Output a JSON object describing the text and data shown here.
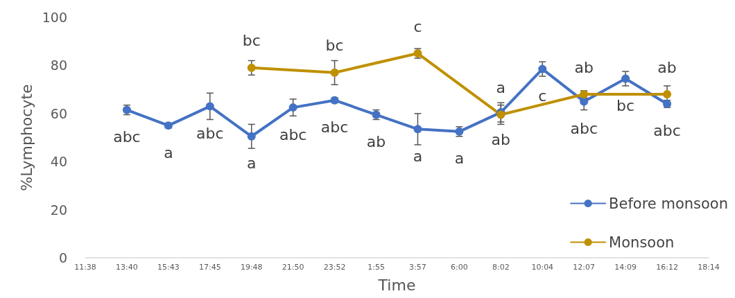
{
  "chart_data": {
    "type": "line",
    "xlabel": "Time",
    "ylabel": "%Lymphocyte",
    "categories": [
      "11:38",
      "13:40",
      "15:43",
      "17:45",
      "19:48",
      "21:50",
      "23:52",
      "1:55",
      "3:57",
      "6:00",
      "8:02",
      "10:04",
      "12:07",
      "14:09",
      "16:12",
      "18:14"
    ],
    "series": [
      {
        "name": "Before monsoon",
        "color": "#4472c4",
        "values": [
          null,
          61.5,
          55,
          63,
          50.5,
          62.5,
          65.5,
          59.5,
          53.5,
          52.5,
          60.5,
          78.5,
          65,
          74.5,
          64,
          null
        ],
        "errors": [
          null,
          2,
          1,
          5.5,
          5,
          3.5,
          1,
          2,
          6.5,
          2,
          4,
          3,
          3.5,
          3,
          1.5,
          null
        ],
        "value_labels": [
          null,
          "abc",
          "a",
          "abc",
          "a",
          "abc",
          "abc",
          "ab",
          "a",
          "a",
          "ab",
          "c",
          "abc",
          "bc",
          "abc",
          null
        ]
      },
      {
        "name": "Monsoon",
        "color": "#bf9000",
        "values": [
          null,
          null,
          null,
          null,
          79,
          null,
          77,
          null,
          85,
          null,
          59.5,
          null,
          68,
          null,
          68,
          null
        ],
        "errors": [
          null,
          null,
          null,
          null,
          3,
          null,
          5,
          null,
          2,
          null,
          4,
          null,
          1.5,
          null,
          3.5,
          null
        ],
        "value_labels": [
          null,
          null,
          null,
          null,
          "bc",
          null,
          "bc",
          null,
          "c",
          null,
          "a",
          null,
          "ab",
          null,
          "ab",
          null
        ]
      }
    ],
    "ylim": [
      0,
      100
    ],
    "yticks": [
      0,
      20,
      40,
      60,
      80,
      100
    ],
    "grid": false,
    "legend": "bottom right",
    "marker": "circle",
    "line_style": "solid"
  }
}
